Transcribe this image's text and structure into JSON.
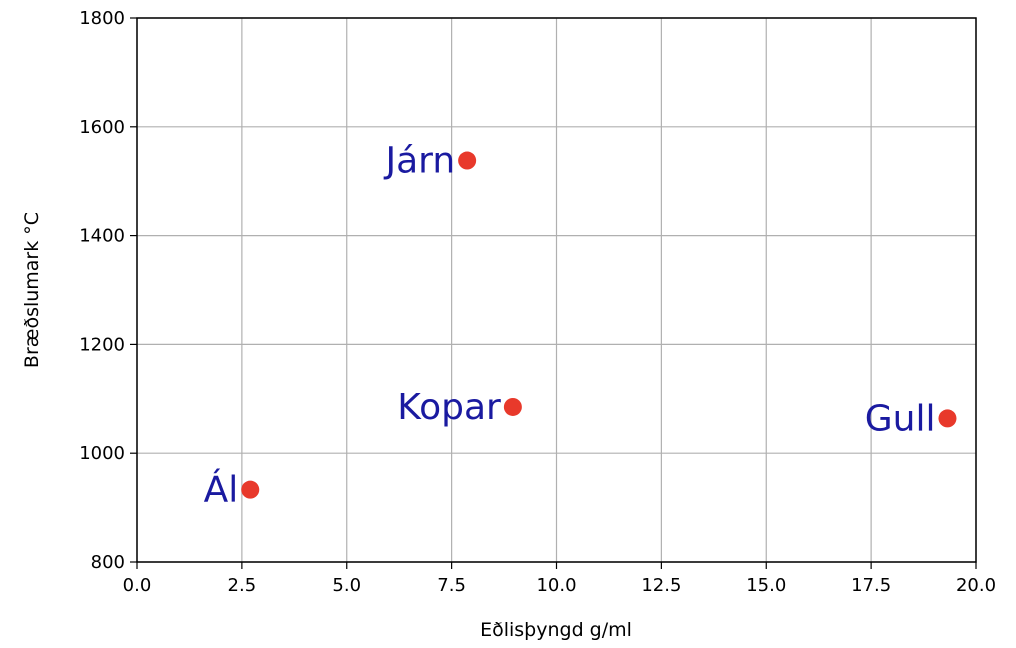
{
  "chart_data": {
    "type": "scatter",
    "title": "",
    "xlabel": "Eðlisþyngd g/ml",
    "ylabel": "Bræðslumark °C",
    "xlim": [
      0,
      20
    ],
    "ylim": [
      800,
      1800
    ],
    "xticks": [
      "0.0",
      "2.5",
      "5.0",
      "7.5",
      "10.0",
      "12.5",
      "15.0",
      "17.5",
      "20.0"
    ],
    "yticks": [
      "800",
      "1000",
      "1200",
      "1400",
      "1600",
      "1800"
    ],
    "grid": true,
    "points": [
      {
        "label": "Ál",
        "x": 2.7,
        "y": 933
      },
      {
        "label": "Járn",
        "x": 7.87,
        "y": 1538
      },
      {
        "label": "Kopar",
        "x": 8.96,
        "y": 1085
      },
      {
        "label": "Gull",
        "x": 19.32,
        "y": 1064
      }
    ],
    "colors": {
      "marker": "#e8392b",
      "label": "#1a1aa0",
      "grid": "#b0b0b0",
      "axis": "#000000"
    }
  }
}
